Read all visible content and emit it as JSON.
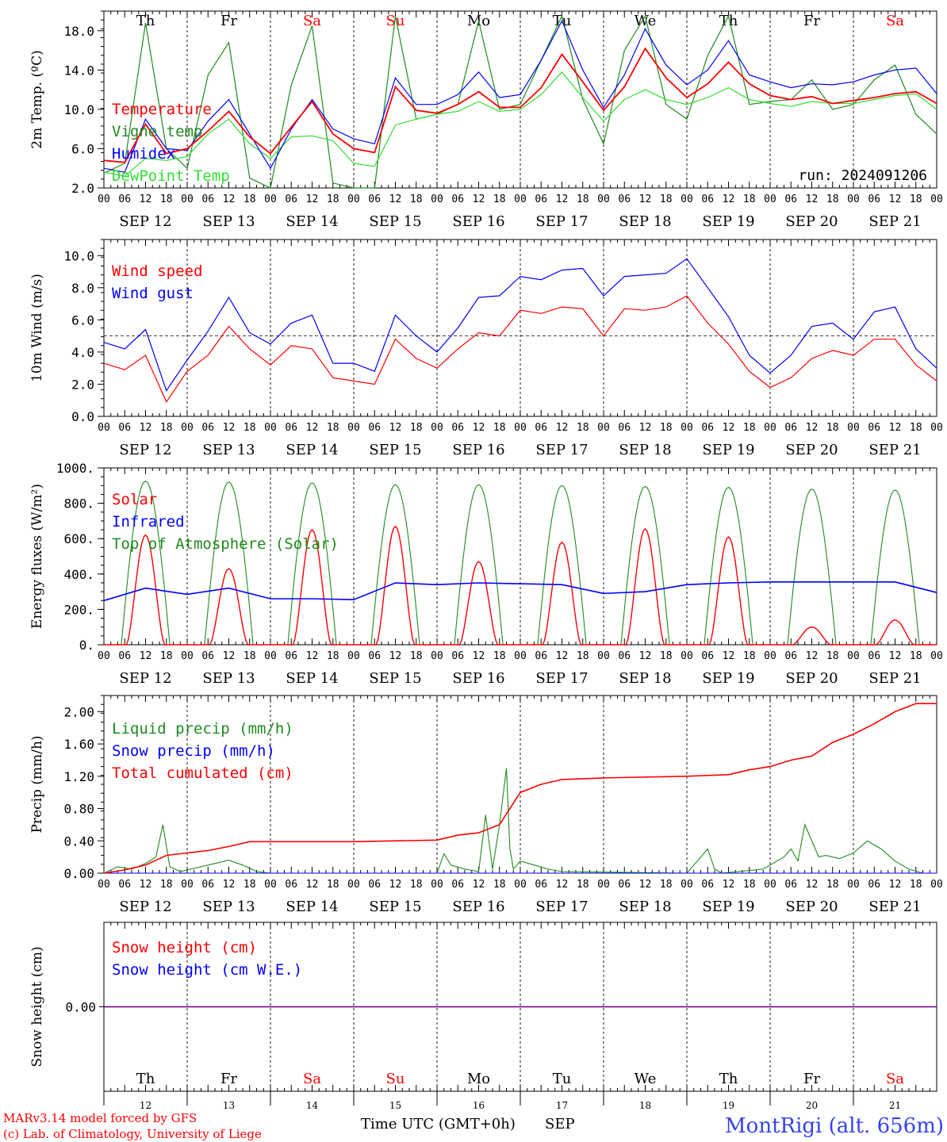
{
  "meta": {
    "days": [
      "SEP 12",
      "SEP 13",
      "SEP 14",
      "SEP 15",
      "SEP 16",
      "SEP 17",
      "SEP 18",
      "SEP 19",
      "SEP 20",
      "SEP 21"
    ],
    "weekdays": [
      "Th",
      "Fr",
      "Sa",
      "Su",
      "Mo",
      "Tu",
      "We",
      "Th",
      "Fr",
      "Sa"
    ],
    "weekday_colors": [
      "#000000",
      "#000000",
      "#ff0000",
      "#ff0000",
      "#000000",
      "#000000",
      "#000000",
      "#000000",
      "#000000",
      "#ff0000"
    ],
    "hour_ticks": [
      "00",
      "06",
      "12",
      "18"
    ],
    "day_numbers": [
      "12",
      "13",
      "14",
      "15",
      "16",
      "17",
      "18",
      "19",
      "20",
      "21"
    ],
    "xlabel": "Time UTC (GMT+0h)",
    "month": "SEP",
    "footer_left_1": "MARv3.14 model forced by GFS",
    "footer_left_2": "(c) Lab. of Climatology, University of Liege",
    "station": "MontRigi (alt. 656m)",
    "run_label": "run: 2024091206",
    "colors": {
      "red": "#ff0000",
      "green": "#1f8a1f",
      "blue": "#0000ff",
      "lightgreen": "#33dd33",
      "purple": "#7b2a8b"
    }
  },
  "chart_data": [
    {
      "id": "temp",
      "type": "line",
      "ylabel": "2m Temp. (ºC)",
      "ylim": [
        2,
        20
      ],
      "yticks": [
        "2.0",
        "6.0",
        "10.0",
        "14.0",
        "18.0"
      ],
      "legend": [
        {
          "name": "Temperature",
          "color": "#ff0000"
        },
        {
          "name": "Vigne temp",
          "color": "#1f8a1f"
        },
        {
          "name": "Humidex",
          "color": "#0000ff"
        },
        {
          "name": "DewPoint Temp",
          "color": "#33dd33"
        }
      ],
      "x_hours": [
        0,
        6,
        12,
        18,
        24,
        30,
        36,
        42,
        48,
        54,
        60,
        66,
        72,
        78,
        84,
        90,
        96,
        102,
        108,
        114,
        120,
        126,
        132,
        138,
        144,
        150,
        156,
        162,
        168,
        174,
        180,
        186,
        192,
        198,
        204,
        210,
        216,
        222,
        228,
        234,
        240
      ],
      "series": [
        {
          "name": "Temperature",
          "color": "#ff0000",
          "values": [
            4.8,
            4.6,
            8.5,
            5.5,
            6.0,
            7.8,
            9.8,
            7.2,
            5.5,
            8.2,
            10.8,
            7.5,
            6.0,
            5.6,
            12.3,
            9.9,
            9.6,
            10.5,
            11.8,
            10.2,
            10.2,
            12.2,
            15.6,
            12.8,
            9.9,
            12.3,
            16.2,
            13.2,
            11.2,
            12.6,
            14.8,
            12.6,
            11.4,
            11.0,
            11.3,
            10.6,
            10.9,
            11.2,
            11.6,
            11.8,
            10.6
          ]
        },
        {
          "name": "Humidex",
          "color": "#0000ff",
          "values": [
            4.0,
            3.6,
            9.0,
            6.0,
            5.8,
            8.8,
            11.0,
            7.5,
            4.0,
            8.0,
            11.0,
            8.0,
            7.0,
            6.5,
            13.2,
            10.5,
            10.5,
            11.5,
            13.8,
            11.2,
            11.5,
            15.0,
            19.0,
            14.0,
            10.2,
            13.5,
            18.2,
            14.5,
            12.5,
            14.0,
            17.0,
            13.5,
            12.8,
            12.2,
            12.6,
            12.5,
            12.8,
            13.5,
            14.0,
            14.2,
            11.6
          ]
        },
        {
          "name": "Vigne temp",
          "color": "#1f8a1f",
          "values": [
            3.5,
            4.5,
            18.8,
            6.0,
            4.0,
            13.5,
            16.8,
            3.0,
            1.5,
            12.5,
            18.5,
            2.5,
            2.0,
            1.8,
            19.5,
            9.0,
            9.5,
            10.5,
            19.0,
            10.0,
            10.5,
            15.0,
            19.5,
            11.0,
            6.5,
            16.0,
            19.5,
            10.5,
            9.0,
            15.5,
            19.5,
            10.5,
            10.8,
            11.0,
            13.0,
            10.0,
            10.5,
            13.0,
            14.5,
            9.5,
            7.5
          ]
        },
        {
          "name": "DewPoint Temp",
          "color": "#33dd33",
          "values": [
            3.6,
            3.2,
            5.0,
            4.8,
            5.2,
            7.5,
            9.0,
            6.5,
            5.0,
            7.2,
            7.3,
            6.8,
            4.5,
            4.2,
            8.4,
            9.0,
            9.5,
            9.8,
            10.8,
            9.8,
            10.0,
            11.5,
            13.8,
            11.2,
            8.8,
            11.0,
            12.0,
            11.0,
            10.5,
            11.2,
            12.2,
            11.0,
            10.6,
            10.3,
            10.8,
            10.6,
            10.6,
            11.0,
            11.4,
            11.6,
            10.0
          ]
        }
      ]
    },
    {
      "id": "wind",
      "type": "line",
      "ylabel": "10m Wind (m/s)",
      "ylim": [
        0,
        11
      ],
      "yticks": [
        "0.0",
        "2.0",
        "4.0",
        "6.0",
        "8.0",
        "10.0"
      ],
      "reference_line": 5,
      "legend": [
        {
          "name": "Wind speed",
          "color": "#ff0000"
        },
        {
          "name": "Wind gust",
          "color": "#0000ff"
        }
      ],
      "x_hours": [
        0,
        6,
        12,
        18,
        24,
        30,
        36,
        42,
        48,
        54,
        60,
        66,
        72,
        78,
        84,
        90,
        96,
        102,
        108,
        114,
        120,
        126,
        132,
        138,
        144,
        150,
        156,
        162,
        168,
        174,
        180,
        186,
        192,
        198,
        204,
        210,
        216,
        222,
        228,
        234,
        240
      ],
      "series": [
        {
          "name": "Wind speed",
          "color": "#ff0000",
          "values": [
            3.3,
            2.9,
            3.8,
            0.9,
            2.8,
            3.8,
            5.6,
            4.2,
            3.2,
            4.4,
            4.2,
            2.4,
            2.2,
            2.0,
            4.8,
            3.6,
            3.0,
            4.2,
            5.2,
            5.0,
            6.6,
            6.4,
            6.8,
            6.7,
            5.0,
            6.7,
            6.6,
            6.8,
            7.5,
            5.8,
            4.5,
            2.8,
            1.8,
            2.4,
            3.6,
            4.1,
            3.8,
            4.8,
            4.8,
            3.2,
            2.2
          ]
        },
        {
          "name": "Wind gust",
          "color": "#0000ff",
          "values": [
            4.6,
            4.2,
            5.4,
            1.6,
            3.5,
            5.3,
            7.4,
            5.2,
            4.5,
            5.8,
            6.3,
            3.3,
            3.3,
            2.8,
            6.3,
            5.0,
            4.0,
            5.5,
            7.4,
            7.5,
            8.7,
            8.5,
            9.1,
            9.2,
            7.5,
            8.7,
            8.8,
            8.9,
            9.8,
            8.0,
            6.2,
            3.8,
            2.7,
            3.8,
            5.6,
            5.8,
            4.8,
            6.5,
            6.8,
            4.2,
            3.0
          ]
        }
      ]
    },
    {
      "id": "energy",
      "type": "line",
      "ylabel": "Energy fluxes (W/m²)",
      "ylim": [
        0,
        1000
      ],
      "yticks": [
        "0.",
        "200.",
        "400.",
        "600.",
        "800.",
        "1000."
      ],
      "legend": [
        {
          "name": "Solar",
          "color": "#ff0000"
        },
        {
          "name": "Infrared",
          "color": "#0000ff"
        },
        {
          "name": "Top of Atmosphere (Solar)",
          "color": "#1f8a1f"
        }
      ],
      "toa_peaks": [
        925,
        920,
        915,
        905,
        905,
        900,
        895,
        890,
        880,
        875
      ],
      "solar_peaks": [
        620,
        430,
        650,
        670,
        470,
        580,
        655,
        610,
        100,
        140
      ],
      "infrared": {
        "x_hours": [
          0,
          12,
          24,
          36,
          48,
          60,
          72,
          84,
          96,
          108,
          120,
          132,
          144,
          156,
          168,
          180,
          192,
          204,
          216,
          228,
          240
        ],
        "values": [
          250,
          320,
          285,
          320,
          260,
          260,
          255,
          350,
          340,
          350,
          345,
          340,
          290,
          300,
          340,
          350,
          355,
          355,
          355,
          355,
          295
        ]
      }
    },
    {
      "id": "precip",
      "type": "line",
      "ylabel": "Precip (mm/h)",
      "ylim": [
        0,
        2.2
      ],
      "yticks": [
        "0.00",
        "0.40",
        "0.80",
        "1.20",
        "1.60",
        "2.00"
      ],
      "legend": [
        {
          "name": "Liquid precip (mm/h)",
          "color": "#1f8a1f"
        },
        {
          "name": "Snow precip (mm/h)",
          "color": "#0000ff"
        },
        {
          "name": "Total cumulated (cm)",
          "color": "#ff0000"
        }
      ],
      "series": [
        {
          "name": "Total cumulated (cm)",
          "color": "#ff0000",
          "x_hours": [
            0,
            6,
            12,
            18,
            24,
            30,
            36,
            42,
            48,
            72,
            96,
            102,
            108,
            114,
            120,
            126,
            132,
            144,
            168,
            180,
            186,
            192,
            198,
            204,
            210,
            216,
            222,
            228,
            234,
            240
          ],
          "values": [
            0,
            0.04,
            0.1,
            0.22,
            0.25,
            0.28,
            0.33,
            0.39,
            0.39,
            0.39,
            0.41,
            0.47,
            0.5,
            0.6,
            1.0,
            1.1,
            1.16,
            1.18,
            1.2,
            1.22,
            1.28,
            1.32,
            1.4,
            1.45,
            1.62,
            1.72,
            1.85,
            2.0,
            2.1,
            2.1
          ]
        },
        {
          "name": "Liquid precip (mm/h)",
          "color": "#1f8a1f",
          "x_hours": [
            0,
            4,
            8,
            12,
            15,
            17,
            19,
            22,
            30,
            36,
            40,
            44,
            48,
            96,
            98,
            100,
            104,
            108,
            110,
            112,
            114,
            116,
            117,
            118,
            120,
            124,
            128,
            132,
            168,
            174,
            176,
            178,
            190,
            196,
            198,
            200,
            202,
            206,
            208,
            212,
            216,
            220,
            224,
            228,
            232,
            236,
            240
          ],
          "values": [
            0,
            0.08,
            0.05,
            0.12,
            0.2,
            0.6,
            0.08,
            0.02,
            0.1,
            0.16,
            0.1,
            0.02,
            0,
            0,
            0.24,
            0.1,
            0.05,
            0.02,
            0.72,
            0.05,
            0.6,
            1.3,
            0.3,
            0.05,
            0.15,
            0.1,
            0.05,
            0.02,
            0,
            0.3,
            0.05,
            0,
            0.05,
            0.2,
            0.3,
            0.15,
            0.6,
            0.2,
            0.22,
            0.18,
            0.25,
            0.4,
            0.3,
            0.15,
            0.05,
            0,
            0
          ]
        }
      ]
    },
    {
      "id": "snow",
      "type": "line",
      "ylabel": "Snow height (cm)",
      "ylim": [
        -1,
        1
      ],
      "yticks": [
        "0.00"
      ],
      "legend": [
        {
          "name": "Snow height (cm)",
          "color": "#ff0000"
        },
        {
          "name": "Snow height (cm W.E.)",
          "color": "#0000ff"
        }
      ],
      "series": [
        {
          "name": "Snow height (cm)",
          "color": "#ff0000",
          "values": [
            0,
            0
          ]
        },
        {
          "name": "Snow height (cm W.E.)",
          "color": "#0000ff",
          "values": [
            0,
            0
          ]
        }
      ]
    }
  ]
}
